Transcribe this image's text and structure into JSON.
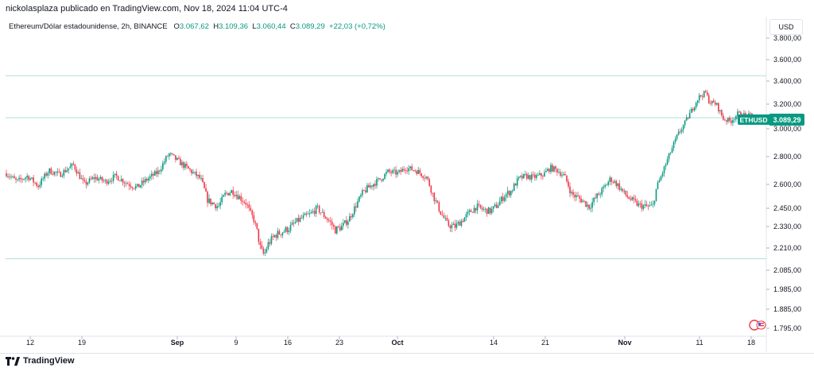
{
  "header": {
    "text": "nickolasplaza publicado en TradingView.com, Nov 18, 2024 11:04 UTC-4"
  },
  "legend": {
    "symbol": "Ethereum/Dólar estadounidense, 2h, BINANCE",
    "o_label": "O",
    "o_value": "3.067,62",
    "h_label": "H",
    "h_value": "3.109,36",
    "l_label": "L",
    "l_value": "3.060,44",
    "c_label": "C",
    "c_value": "3.089,29",
    "change": "+22,03 (+0,72%)"
  },
  "axis": {
    "unit": "USD"
  },
  "price_tag": {
    "symbol": "ETHUSD",
    "value": "3.089,29"
  },
  "footer": {
    "brand": "TradingView"
  },
  "colors": {
    "up": "#089981",
    "down": "#f23645",
    "tag": "#089981",
    "hline": "#b2dfd8"
  },
  "chart_data": {
    "type": "candlestick",
    "y_ticks": [
      "3.800,00",
      "3.600,00",
      "3.400,00",
      "3.200,00",
      "3.000,00",
      "2.800,00",
      "2.600,00",
      "2.450,00",
      "2.330,00",
      "2.210,00",
      "2.085,00",
      "1.985,00",
      "1.885,00",
      "1.795,00"
    ],
    "x_ticks": [
      "12",
      "19",
      "Sep",
      "9",
      "16",
      "23",
      "Oct",
      "14",
      "21",
      "Nov",
      "11",
      "18"
    ],
    "horizontal_lines": [
      3450,
      3089.29,
      2150
    ],
    "path": [
      [
        0,
        2680
      ],
      [
        3,
        2620
      ],
      [
        6,
        2660
      ],
      [
        9,
        2590
      ],
      [
        12,
        2700
      ],
      [
        15,
        2670
      ],
      [
        19,
        2740
      ],
      [
        22,
        2600
      ],
      [
        25,
        2650
      ],
      [
        28,
        2620
      ],
      [
        31,
        2660
      ],
      [
        34,
        2610
      ],
      [
        37,
        2580
      ],
      [
        40,
        2640
      ],
      [
        43,
        2690
      ],
      [
        46,
        2820
      ],
      [
        49,
        2760
      ],
      [
        52,
        2700
      ],
      [
        55,
        2640
      ],
      [
        57,
        2500
      ],
      [
        60,
        2460
      ],
      [
        62,
        2540
      ],
      [
        64,
        2560
      ],
      [
        66,
        2520
      ],
      [
        68,
        2480
      ],
      [
        69,
        2420
      ],
      [
        70,
        2380
      ],
      [
        71,
        2300
      ],
      [
        72,
        2200
      ],
      [
        73,
        2170
      ],
      [
        74,
        2230
      ],
      [
        76,
        2280
      ],
      [
        78,
        2300
      ],
      [
        80,
        2320
      ],
      [
        82,
        2360
      ],
      [
        84,
        2390
      ],
      [
        86,
        2410
      ],
      [
        88,
        2450
      ],
      [
        90,
        2400
      ],
      [
        92,
        2350
      ],
      [
        93,
        2310
      ],
      [
        95,
        2330
      ],
      [
        97,
        2380
      ],
      [
        99,
        2470
      ],
      [
        101,
        2550
      ],
      [
        103,
        2590
      ],
      [
        106,
        2640
      ],
      [
        108,
        2690
      ],
      [
        111,
        2680
      ],
      [
        113,
        2720
      ],
      [
        116,
        2700
      ],
      [
        119,
        2650
      ],
      [
        121,
        2520
      ],
      [
        123,
        2420
      ],
      [
        125,
        2340
      ],
      [
        127,
        2330
      ],
      [
        129,
        2370
      ],
      [
        131,
        2420
      ],
      [
        133,
        2460
      ],
      [
        135,
        2440
      ],
      [
        137,
        2430
      ],
      [
        139,
        2470
      ],
      [
        141,
        2530
      ],
      [
        143,
        2560
      ],
      [
        145,
        2640
      ],
      [
        147,
        2660
      ],
      [
        149,
        2650
      ],
      [
        152,
        2670
      ],
      [
        154,
        2720
      ],
      [
        156,
        2700
      ],
      [
        158,
        2660
      ],
      [
        160,
        2540
      ],
      [
        163,
        2500
      ],
      [
        165,
        2460
      ],
      [
        167,
        2520
      ],
      [
        169,
        2570
      ],
      [
        171,
        2640
      ],
      [
        173,
        2600
      ],
      [
        175,
        2540
      ],
      [
        177,
        2500
      ],
      [
        179,
        2470
      ],
      [
        181,
        2460
      ],
      [
        183,
        2460
      ],
      [
        184,
        2570
      ],
      [
        186,
        2700
      ],
      [
        188,
        2830
      ],
      [
        190,
        2950
      ],
      [
        192,
        3040
      ],
      [
        194,
        3150
      ],
      [
        196,
        3260
      ],
      [
        198,
        3300
      ],
      [
        199,
        3220
      ],
      [
        201,
        3200
      ],
      [
        203,
        3080
      ],
      [
        205,
        3060
      ],
      [
        207,
        3120
      ],
      [
        209,
        3110
      ],
      [
        211,
        3100
      ],
      [
        212,
        3089
      ]
    ],
    "price_range": [
      1760,
      3840
    ]
  }
}
